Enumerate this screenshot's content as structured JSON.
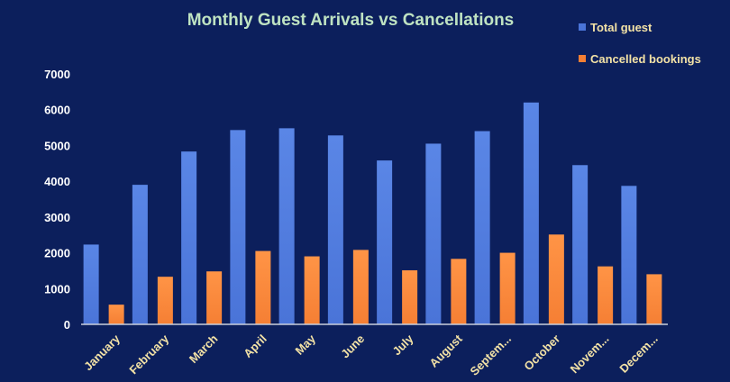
{
  "chart_data": {
    "type": "bar",
    "title": "Monthly Guest Arrivals vs Cancellations",
    "categories": [
      "January",
      "February",
      "March",
      "April",
      "May",
      "June",
      "July",
      "August",
      "Septem...",
      "October",
      "Novem...",
      "Decem..."
    ],
    "series": [
      {
        "name": "Total guest",
        "values": [
          2230,
          3900,
          4830,
          5430,
          5480,
          5280,
          4580,
          5050,
          5400,
          6200,
          4450,
          3870
        ],
        "color": "#4a74d8"
      },
      {
        "name": "Cancelled bookings",
        "values": [
          550,
          1330,
          1480,
          2050,
          1900,
          2080,
          1510,
          1830,
          2000,
          2510,
          1620,
          1400
        ],
        "color": "#f57f34"
      }
    ],
    "ylim": [
      0,
      7000
    ],
    "yticks": [
      0,
      1000,
      2000,
      3000,
      4000,
      5000,
      6000,
      7000
    ],
    "grid": false,
    "legend": "top-right",
    "xlabel": "",
    "ylabel": ""
  }
}
